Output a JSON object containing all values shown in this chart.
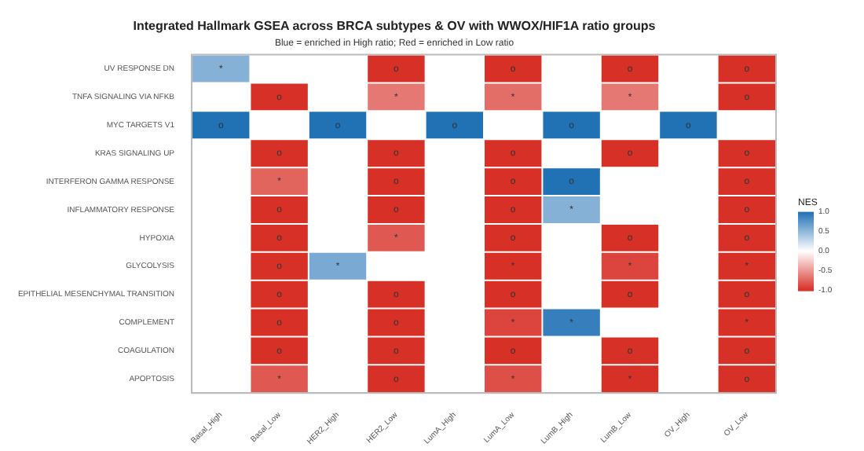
{
  "chart_data": {
    "type": "heatmap",
    "title": "Integrated Hallmark GSEA across BRCA subtypes & OV with WWOX/HIF1A ratio groups",
    "subtitle": "Blue = enriched in High ratio; Red = enriched in Low ratio",
    "clabel": "NES",
    "categories": [
      "Basal_High",
      "Basal_Low",
      "HER2_High",
      "HER2_Low",
      "LumA_High",
      "LumA_Low",
      "LumB_High",
      "LumB_Low",
      "OV_High",
      "OV_Low"
    ],
    "y_categories": [
      "UV RESPONSE DN",
      "TNFA SIGNALING VIA NFKB",
      "MYC TARGETS V1",
      "KRAS SIGNALING UP",
      "INTERFERON GAMMA RESPONSE",
      "INFLAMMATORY RESPONSE",
      "HYPOXIA",
      "GLYCOLYSIS",
      "EPITHELIAL MESENCHYMAL TRANSITION",
      "COMPLEMENT",
      "COAGULATION",
      "APOPTOSIS"
    ],
    "cells": [
      [
        0.55,
        null,
        null,
        -1,
        null,
        -1,
        null,
        -1,
        null,
        -1
      ],
      [
        null,
        -1,
        null,
        -0.65,
        null,
        -0.7,
        null,
        -0.65,
        null,
        -1
      ],
      [
        1,
        null,
        1,
        null,
        1,
        null,
        1,
        null,
        1,
        null
      ],
      [
        null,
        -1,
        null,
        -1,
        null,
        -1,
        null,
        -1,
        null,
        -1
      ],
      [
        null,
        -0.75,
        null,
        -1,
        null,
        -1,
        1,
        null,
        null,
        -1
      ],
      [
        null,
        -1,
        null,
        -1,
        null,
        -1,
        0.55,
        null,
        null,
        -1
      ],
      [
        null,
        -1,
        null,
        -0.8,
        null,
        -1,
        null,
        -1,
        null,
        -1
      ],
      [
        null,
        -1,
        0.6,
        null,
        null,
        -1,
        null,
        -0.9,
        null,
        -1
      ],
      [
        null,
        -1,
        null,
        -1,
        null,
        -1,
        null,
        -1,
        null,
        -1
      ],
      [
        null,
        -1,
        null,
        -1,
        null,
        -0.9,
        0.9,
        null,
        null,
        -1
      ],
      [
        null,
        -1,
        null,
        -1,
        null,
        -1,
        null,
        -1,
        null,
        -1
      ],
      [
        null,
        -0.8,
        null,
        -1,
        null,
        -0.85,
        null,
        -1,
        null,
        -1
      ]
    ],
    "cell_labels": [
      [
        "*",
        null,
        null,
        "o",
        null,
        "o",
        null,
        "o",
        null,
        "o"
      ],
      [
        null,
        "o",
        null,
        "*",
        null,
        "*",
        null,
        "*",
        null,
        "o"
      ],
      [
        "o",
        null,
        "o",
        null,
        "o",
        null,
        "o",
        null,
        "o",
        null
      ],
      [
        null,
        "o",
        null,
        "o",
        null,
        "o",
        null,
        "o",
        null,
        "o"
      ],
      [
        null,
        "*",
        null,
        "o",
        null,
        "o",
        "o",
        null,
        null,
        "o"
      ],
      [
        null,
        "o",
        null,
        "o",
        null,
        "o",
        "*",
        null,
        null,
        "o"
      ],
      [
        null,
        "o",
        null,
        "*",
        null,
        "o",
        null,
        "o",
        null,
        "o"
      ],
      [
        null,
        "o",
        "*",
        null,
        null,
        "*",
        null,
        "*",
        null,
        "*"
      ],
      [
        null,
        "o",
        null,
        "o",
        null,
        "o",
        null,
        "o",
        null,
        "o"
      ],
      [
        null,
        "o",
        null,
        "o",
        null,
        "*",
        "*",
        null,
        null,
        "*"
      ],
      [
        null,
        "o",
        null,
        "o",
        null,
        "o",
        null,
        "o",
        null,
        "o"
      ],
      [
        null,
        "*",
        null,
        "o",
        null,
        "*",
        null,
        "*",
        null,
        "o"
      ]
    ],
    "clim": [
      -1,
      1
    ],
    "cticks": [
      {
        "value": 1,
        "label": "1.0"
      },
      {
        "value": 0.5,
        "label": "0.5"
      },
      {
        "value": 0,
        "label": "0.0"
      },
      {
        "value": -0.5,
        "label": "-0.5"
      },
      {
        "value": -1,
        "label": "-1.0"
      }
    ]
  }
}
